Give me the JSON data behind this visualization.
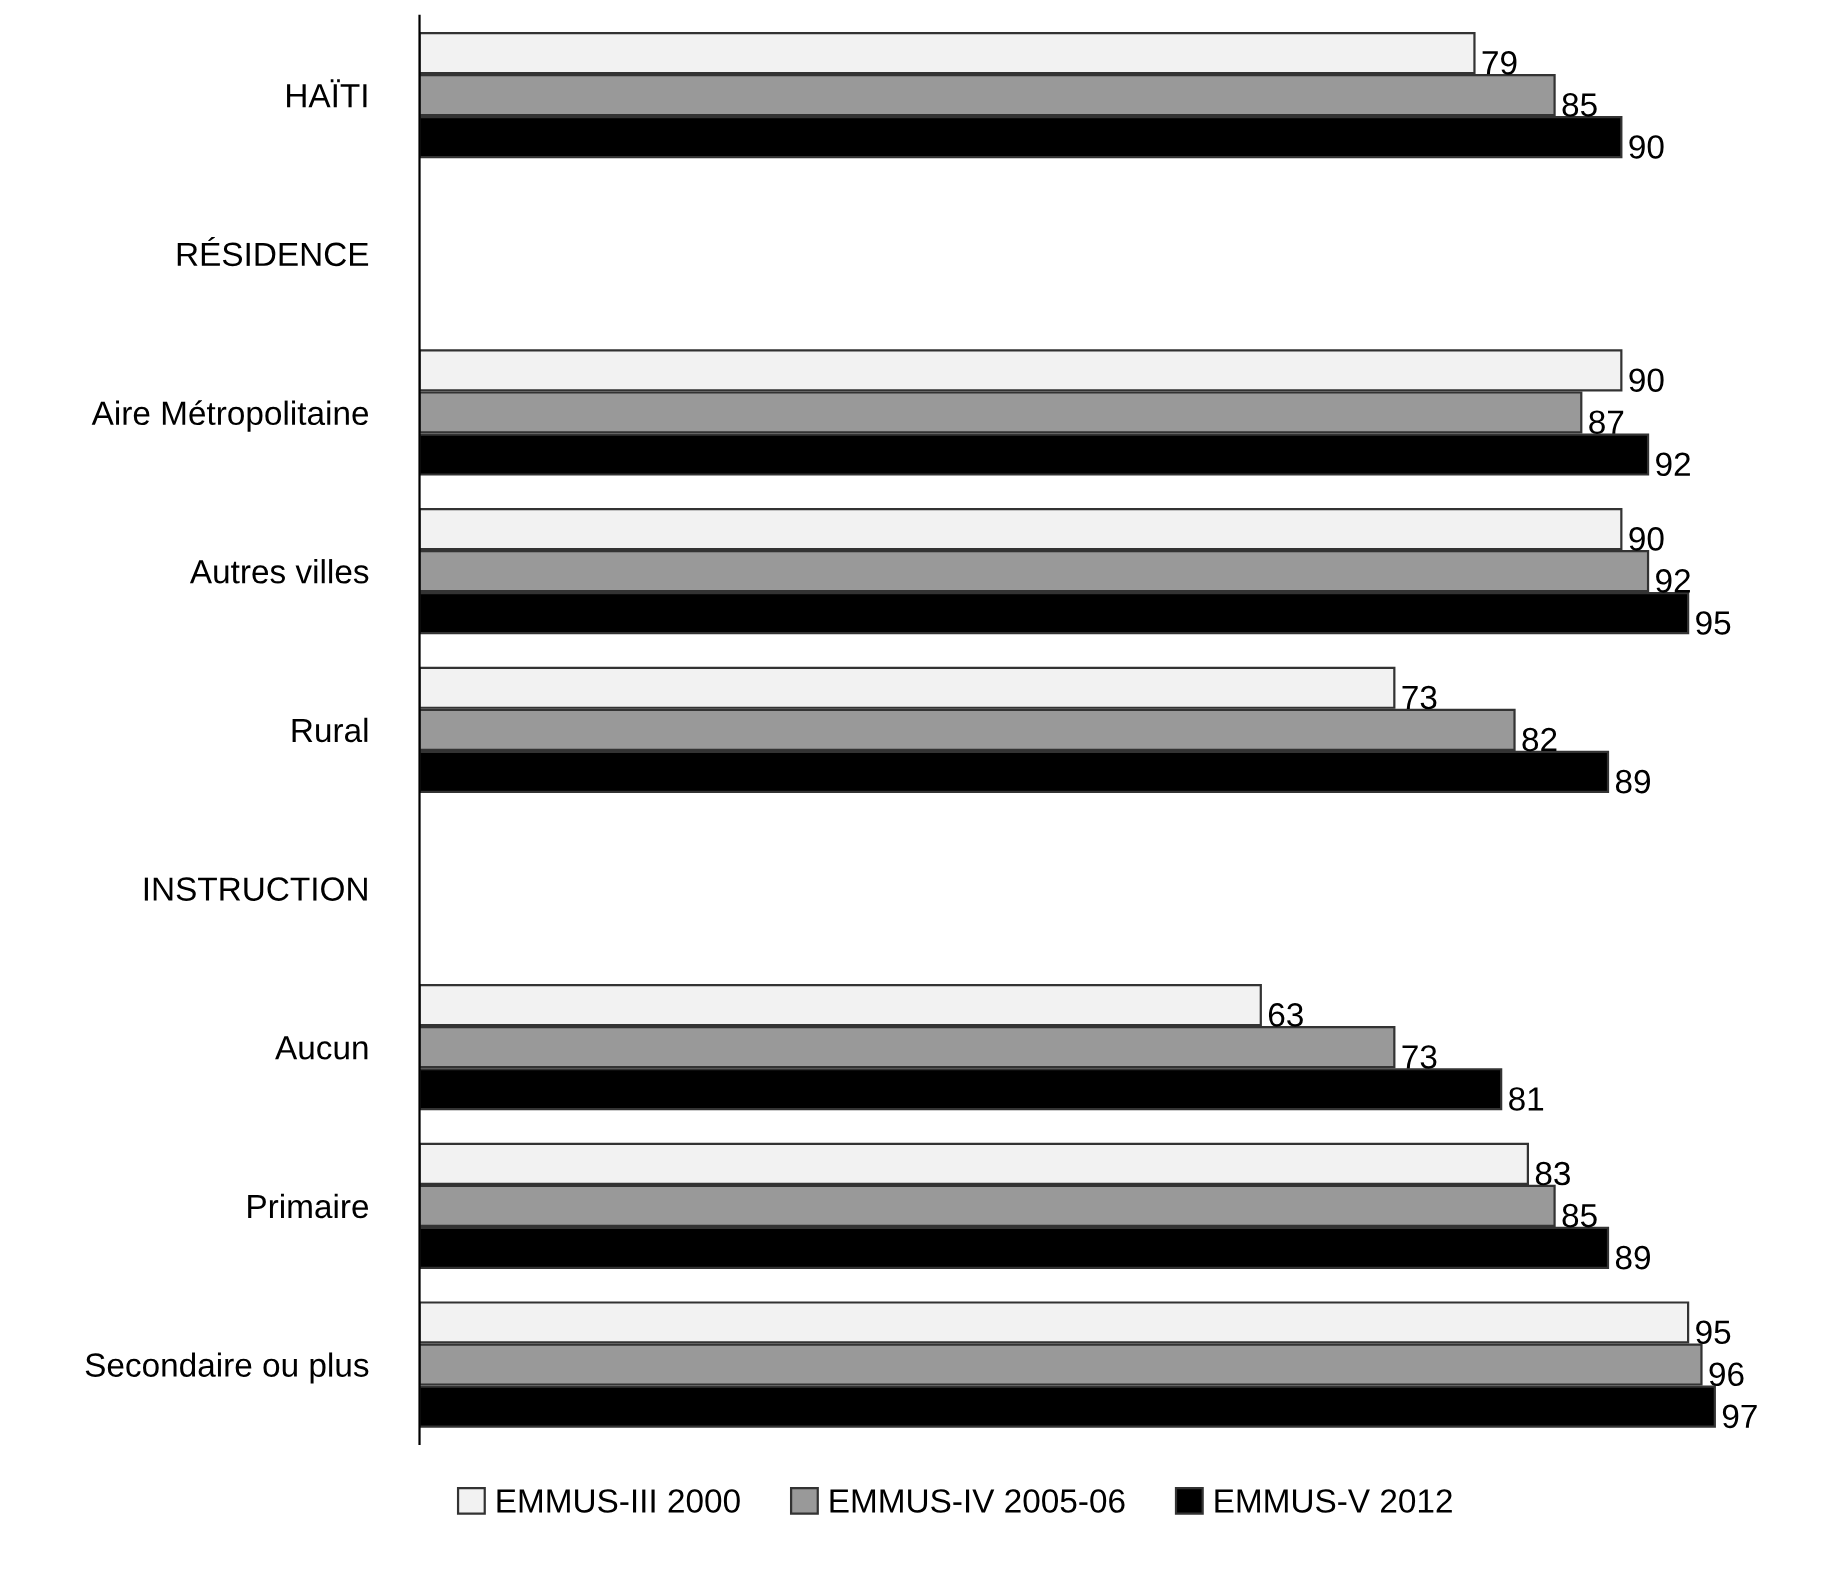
{
  "chart_data": {
    "type": "bar",
    "orientation": "horizontal",
    "data_labels": true,
    "legend": "bottom",
    "grid": false,
    "tick_labels": "y",
    "categories": [
      "HAÏTI",
      "RÉSIDENCE",
      "Aire Métropolitaine",
      "Autres villes",
      "Rural",
      "INSTRUCTION",
      "Aucun",
      "Primaire",
      "Secondaire ou plus"
    ],
    "series": [
      {
        "name": "EMMUS-III 2000",
        "color": "#f2f2f2",
        "values": [
          79,
          null,
          90,
          90,
          73,
          null,
          63,
          83,
          95
        ]
      },
      {
        "name": "EMMUS-IV 2005-06",
        "color": "#999999",
        "values": [
          85,
          null,
          87,
          92,
          82,
          null,
          73,
          85,
          96
        ]
      },
      {
        "name": "EMMUS-V 2012",
        "color": "#000000",
        "values": [
          90,
          null,
          92,
          95,
          89,
          null,
          81,
          89,
          97
        ]
      }
    ]
  }
}
